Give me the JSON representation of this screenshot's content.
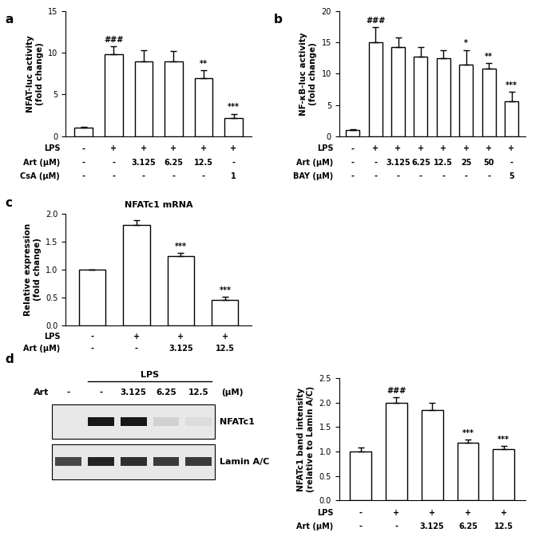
{
  "chart_data": [
    {
      "type": "bar",
      "panel_label": "a",
      "y_label": "NFAT-luc activity\n(fold change)",
      "values": [
        1.0,
        9.8,
        9.0,
        9.0,
        7.0,
        2.2
      ],
      "errors": [
        0.15,
        1.0,
        1.3,
        1.2,
        0.9,
        0.5
      ],
      "annotations": [
        null,
        "###",
        null,
        null,
        "**",
        "***"
      ],
      "condition_rows": [
        {
          "name": "LPS",
          "values": [
            "-",
            "+",
            "+",
            "+",
            "+",
            "+"
          ]
        },
        {
          "name": "Art (μM)",
          "values": [
            "-",
            "-",
            "3.125",
            "6.25",
            "12.5",
            "-"
          ]
        },
        {
          "name": "CsA (μM)",
          "values": [
            "-",
            "-",
            "-",
            "-",
            "-",
            "1"
          ]
        }
      ],
      "color": "#ffffff",
      "ylim": [
        0,
        15
      ],
      "yticks": [
        0,
        5,
        10,
        15
      ],
      "tick_labels": "y"
    },
    {
      "type": "bar",
      "panel_label": "b",
      "y_label": "NF-κB-luc activity\n(fold change)",
      "values": [
        1.0,
        15.0,
        14.2,
        12.7,
        12.5,
        11.5,
        10.8,
        5.6
      ],
      "errors": [
        0.1,
        2.4,
        1.6,
        1.5,
        1.3,
        2.3,
        0.9,
        1.5
      ],
      "annotations": [
        null,
        "###",
        null,
        null,
        null,
        "*",
        "**",
        "***"
      ],
      "condition_rows": [
        {
          "name": "LPS",
          "values": [
            "-",
            "+",
            "+",
            "+",
            "+",
            "+",
            "+",
            "+"
          ]
        },
        {
          "name": "Art (μM)",
          "values": [
            "-",
            "-",
            "3.125",
            "6.25",
            "12.5",
            "25",
            "50",
            "-"
          ]
        },
        {
          "name": "BAY (μM)",
          "values": [
            "-",
            "-",
            "-",
            "-",
            "-",
            "-",
            "-",
            "5"
          ]
        }
      ],
      "color": "#ffffff",
      "ylim": [
        0,
        20
      ],
      "yticks": [
        0,
        5,
        10,
        15,
        20
      ],
      "tick_labels": "y"
    },
    {
      "type": "bar",
      "panel_label": "c",
      "title": "NFATc1 mRNA",
      "y_label": "Relative expression\n(fold change)",
      "values": [
        1.0,
        1.8,
        1.25,
        0.45
      ],
      "errors": [
        0.0,
        0.09,
        0.05,
        0.07
      ],
      "annotations": [
        null,
        null,
        "***",
        "***"
      ],
      "condition_rows": [
        {
          "name": "LPS",
          "values": [
            "-",
            "+",
            "+",
            "+"
          ]
        },
        {
          "name": "Art (μM)",
          "values": [
            "-",
            "-",
            "3.125",
            "12.5"
          ]
        }
      ],
      "color": "#ffffff",
      "ylim": [
        0,
        2.0
      ],
      "yticks": [
        {
          "value": 0,
          "label": "0.0"
        },
        {
          "value": 0.5,
          "label": "0.5"
        },
        {
          "value": 1.0,
          "label": "1.0"
        },
        {
          "value": 1.5,
          "label": "1.5"
        },
        {
          "value": 2.0,
          "label": "2.0"
        }
      ],
      "tick_labels": "y"
    },
    {
      "type": "blot",
      "panel_label": "d",
      "group": {
        "label": "LPS",
        "lanes": [
          false,
          true,
          true,
          true,
          true
        ]
      },
      "condition_rows": [
        {
          "name": "Art",
          "values": [
            "-",
            "-",
            "3.125",
            "6.25",
            "12.5"
          ]
        }
      ],
      "unit": "(μM)",
      "bands": [
        {
          "name": "NFATc1",
          "values": [
            0.0,
            0.9,
            0.9,
            0.1,
            0.05
          ]
        },
        {
          "name": "Lamin A/C",
          "values": [
            0.7,
            0.85,
            0.8,
            0.75,
            0.75
          ]
        }
      ]
    },
    {
      "type": "bar",
      "y_label": "NFATc1 band intensity\n(relative to Lamin A/C)",
      "values": [
        1.0,
        2.0,
        1.85,
        1.18,
        1.05
      ],
      "errors": [
        0.08,
        0.1,
        0.15,
        0.07,
        0.06
      ],
      "annotations": [
        null,
        "###",
        null,
        "***",
        "***"
      ],
      "condition_rows": [
        {
          "name": "LPS",
          "values": [
            "-",
            "+",
            "+",
            "+",
            "+"
          ]
        },
        {
          "name": "Art (μM)",
          "values": [
            "-",
            "-",
            "3.125",
            "6.25",
            "12.5"
          ]
        }
      ],
      "color": "#ffffff",
      "ylim": [
        0,
        2.5
      ],
      "yticks": [
        {
          "value": 0,
          "label": "0.0"
        },
        {
          "value": 0.5,
          "label": "0.5"
        },
        {
          "value": 1.0,
          "label": "1.0"
        },
        {
          "value": 1.5,
          "label": "1.5"
        },
        {
          "value": 2.0,
          "label": "2.0"
        },
        {
          "value": 2.5,
          "label": "2.5"
        }
      ],
      "tick_labels": "y"
    }
  ]
}
